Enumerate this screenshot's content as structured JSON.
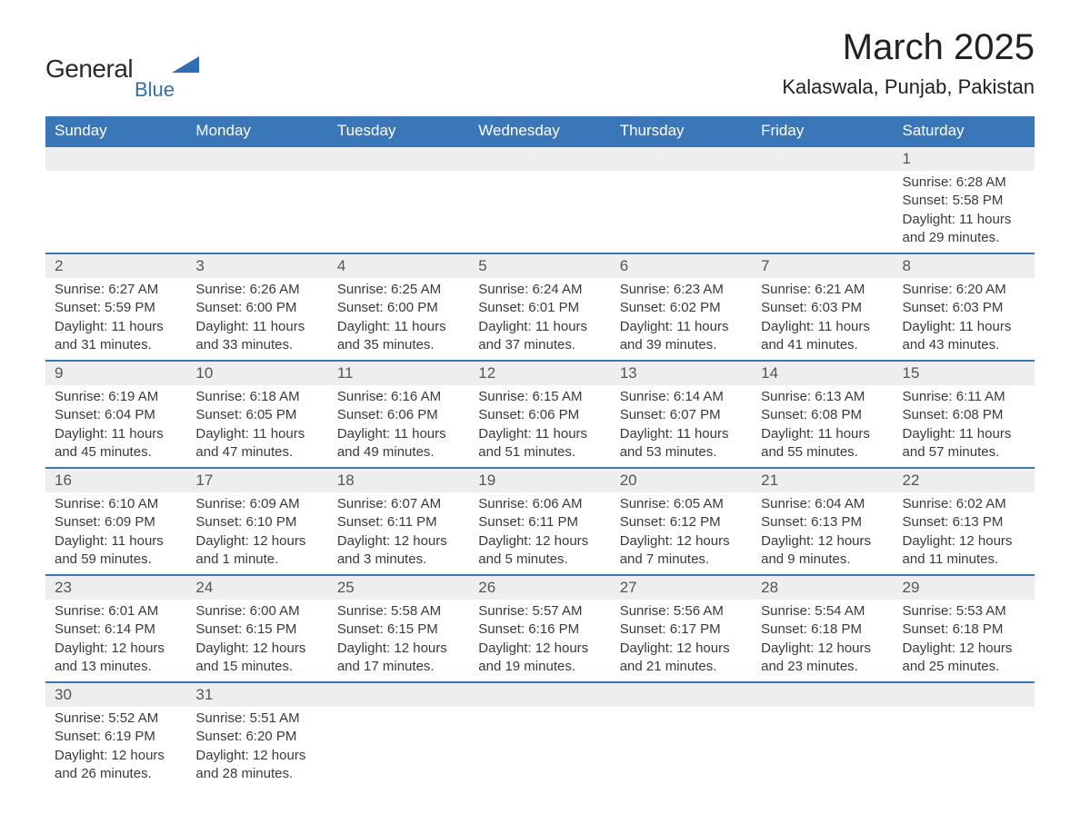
{
  "logo": {
    "text1": "General",
    "text2": "Blue",
    "accent_color": "#2f6fb3",
    "text_color": "#2a2a2a"
  },
  "title": "March 2025",
  "location": "Kalaswala, Punjab, Pakistan",
  "styling": {
    "header_bg": "#3a77b9",
    "header_fg": "#ffffff",
    "daynum_bg": "#eeeeee",
    "daynum_fg": "#555555",
    "body_fg": "#3a3a3a",
    "page_bg": "#ffffff",
    "row_border": "#3a77b9",
    "font_family": "Arial",
    "title_fontsize": 40,
    "location_fontsize": 22,
    "header_fontsize": 17,
    "cell_fontsize": 15
  },
  "weekdays": [
    "Sunday",
    "Monday",
    "Tuesday",
    "Wednesday",
    "Thursday",
    "Friday",
    "Saturday"
  ],
  "weeks": [
    [
      null,
      null,
      null,
      null,
      null,
      null,
      {
        "n": "1",
        "sr": "Sunrise: 6:28 AM",
        "ss": "Sunset: 5:58 PM",
        "dl": "Daylight: 11 hours and 29 minutes."
      }
    ],
    [
      {
        "n": "2",
        "sr": "Sunrise: 6:27 AM",
        "ss": "Sunset: 5:59 PM",
        "dl": "Daylight: 11 hours and 31 minutes."
      },
      {
        "n": "3",
        "sr": "Sunrise: 6:26 AM",
        "ss": "Sunset: 6:00 PM",
        "dl": "Daylight: 11 hours and 33 minutes."
      },
      {
        "n": "4",
        "sr": "Sunrise: 6:25 AM",
        "ss": "Sunset: 6:00 PM",
        "dl": "Daylight: 11 hours and 35 minutes."
      },
      {
        "n": "5",
        "sr": "Sunrise: 6:24 AM",
        "ss": "Sunset: 6:01 PM",
        "dl": "Daylight: 11 hours and 37 minutes."
      },
      {
        "n": "6",
        "sr": "Sunrise: 6:23 AM",
        "ss": "Sunset: 6:02 PM",
        "dl": "Daylight: 11 hours and 39 minutes."
      },
      {
        "n": "7",
        "sr": "Sunrise: 6:21 AM",
        "ss": "Sunset: 6:03 PM",
        "dl": "Daylight: 11 hours and 41 minutes."
      },
      {
        "n": "8",
        "sr": "Sunrise: 6:20 AM",
        "ss": "Sunset: 6:03 PM",
        "dl": "Daylight: 11 hours and 43 minutes."
      }
    ],
    [
      {
        "n": "9",
        "sr": "Sunrise: 6:19 AM",
        "ss": "Sunset: 6:04 PM",
        "dl": "Daylight: 11 hours and 45 minutes."
      },
      {
        "n": "10",
        "sr": "Sunrise: 6:18 AM",
        "ss": "Sunset: 6:05 PM",
        "dl": "Daylight: 11 hours and 47 minutes."
      },
      {
        "n": "11",
        "sr": "Sunrise: 6:16 AM",
        "ss": "Sunset: 6:06 PM",
        "dl": "Daylight: 11 hours and 49 minutes."
      },
      {
        "n": "12",
        "sr": "Sunrise: 6:15 AM",
        "ss": "Sunset: 6:06 PM",
        "dl": "Daylight: 11 hours and 51 minutes."
      },
      {
        "n": "13",
        "sr": "Sunrise: 6:14 AM",
        "ss": "Sunset: 6:07 PM",
        "dl": "Daylight: 11 hours and 53 minutes."
      },
      {
        "n": "14",
        "sr": "Sunrise: 6:13 AM",
        "ss": "Sunset: 6:08 PM",
        "dl": "Daylight: 11 hours and 55 minutes."
      },
      {
        "n": "15",
        "sr": "Sunrise: 6:11 AM",
        "ss": "Sunset: 6:08 PM",
        "dl": "Daylight: 11 hours and 57 minutes."
      }
    ],
    [
      {
        "n": "16",
        "sr": "Sunrise: 6:10 AM",
        "ss": "Sunset: 6:09 PM",
        "dl": "Daylight: 11 hours and 59 minutes."
      },
      {
        "n": "17",
        "sr": "Sunrise: 6:09 AM",
        "ss": "Sunset: 6:10 PM",
        "dl": "Daylight: 12 hours and 1 minute."
      },
      {
        "n": "18",
        "sr": "Sunrise: 6:07 AM",
        "ss": "Sunset: 6:11 PM",
        "dl": "Daylight: 12 hours and 3 minutes."
      },
      {
        "n": "19",
        "sr": "Sunrise: 6:06 AM",
        "ss": "Sunset: 6:11 PM",
        "dl": "Daylight: 12 hours and 5 minutes."
      },
      {
        "n": "20",
        "sr": "Sunrise: 6:05 AM",
        "ss": "Sunset: 6:12 PM",
        "dl": "Daylight: 12 hours and 7 minutes."
      },
      {
        "n": "21",
        "sr": "Sunrise: 6:04 AM",
        "ss": "Sunset: 6:13 PM",
        "dl": "Daylight: 12 hours and 9 minutes."
      },
      {
        "n": "22",
        "sr": "Sunrise: 6:02 AM",
        "ss": "Sunset: 6:13 PM",
        "dl": "Daylight: 12 hours and 11 minutes."
      }
    ],
    [
      {
        "n": "23",
        "sr": "Sunrise: 6:01 AM",
        "ss": "Sunset: 6:14 PM",
        "dl": "Daylight: 12 hours and 13 minutes."
      },
      {
        "n": "24",
        "sr": "Sunrise: 6:00 AM",
        "ss": "Sunset: 6:15 PM",
        "dl": "Daylight: 12 hours and 15 minutes."
      },
      {
        "n": "25",
        "sr": "Sunrise: 5:58 AM",
        "ss": "Sunset: 6:15 PM",
        "dl": "Daylight: 12 hours and 17 minutes."
      },
      {
        "n": "26",
        "sr": "Sunrise: 5:57 AM",
        "ss": "Sunset: 6:16 PM",
        "dl": "Daylight: 12 hours and 19 minutes."
      },
      {
        "n": "27",
        "sr": "Sunrise: 5:56 AM",
        "ss": "Sunset: 6:17 PM",
        "dl": "Daylight: 12 hours and 21 minutes."
      },
      {
        "n": "28",
        "sr": "Sunrise: 5:54 AM",
        "ss": "Sunset: 6:18 PM",
        "dl": "Daylight: 12 hours and 23 minutes."
      },
      {
        "n": "29",
        "sr": "Sunrise: 5:53 AM",
        "ss": "Sunset: 6:18 PM",
        "dl": "Daylight: 12 hours and 25 minutes."
      }
    ],
    [
      {
        "n": "30",
        "sr": "Sunrise: 5:52 AM",
        "ss": "Sunset: 6:19 PM",
        "dl": "Daylight: 12 hours and 26 minutes."
      },
      {
        "n": "31",
        "sr": "Sunrise: 5:51 AM",
        "ss": "Sunset: 6:20 PM",
        "dl": "Daylight: 12 hours and 28 minutes."
      },
      null,
      null,
      null,
      null,
      null
    ]
  ]
}
